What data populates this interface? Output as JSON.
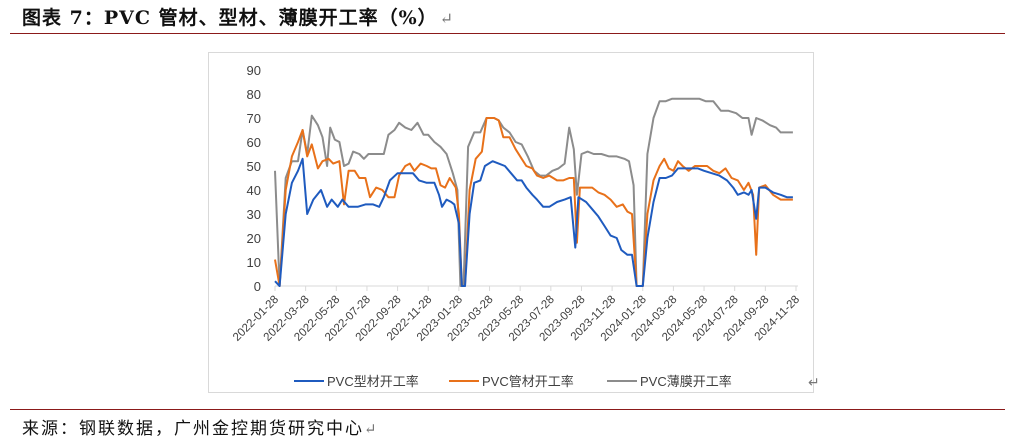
{
  "figure": {
    "title": "图表 7：PVC 管材、型材、薄膜开工率（%）",
    "return_mark": "↵"
  },
  "source": {
    "text": "来源：钢联数据，广州金控期货研究中心",
    "return_mark": "↵"
  },
  "legend_return_mark": "↵",
  "chart_data": {
    "type": "line",
    "title": "PVC 管材、型材、薄膜开工率（%）",
    "xlabel": "",
    "ylabel": "",
    "ylim": [
      0,
      90
    ],
    "yticks": [
      0,
      10,
      20,
      30,
      40,
      50,
      60,
      70,
      80,
      90
    ],
    "grid": false,
    "legend_position": "bottom",
    "x_tick_labels": [
      "2022-01-28",
      "2022-03-28",
      "2022-05-28",
      "2022-07-28",
      "2022-09-28",
      "2022-11-28",
      "2023-01-28",
      "2023-03-28",
      "2023-05-28",
      "2023-07-28",
      "2023-09-28",
      "2023-11-28",
      "2024-01-28",
      "2024-03-28",
      "2024-05-28",
      "2024-07-28",
      "2024-09-28",
      "2024-11-28"
    ],
    "x_unit": "months since 2022-01-28",
    "x_range": [
      0,
      34
    ],
    "series": [
      {
        "name": "PVC型材开工率",
        "color": "#1f5bbf",
        "points": [
          [
            0,
            2
          ],
          [
            0.3,
            0
          ],
          [
            0.7,
            30
          ],
          [
            1.1,
            43
          ],
          [
            1.5,
            48
          ],
          [
            1.8,
            53
          ],
          [
            2.1,
            30
          ],
          [
            2.5,
            36
          ],
          [
            3.0,
            40
          ],
          [
            3.4,
            33
          ],
          [
            3.7,
            36
          ],
          [
            4.1,
            33
          ],
          [
            4.4,
            36
          ],
          [
            4.8,
            33
          ],
          [
            5.4,
            33
          ],
          [
            5.9,
            34
          ],
          [
            6.4,
            34
          ],
          [
            6.8,
            33
          ],
          [
            7.1,
            37
          ],
          [
            7.5,
            44
          ],
          [
            8.0,
            47
          ],
          [
            8.6,
            47
          ],
          [
            9.0,
            47
          ],
          [
            9.4,
            44
          ],
          [
            9.9,
            43
          ],
          [
            10.4,
            43
          ],
          [
            10.7,
            38
          ],
          [
            10.9,
            33
          ],
          [
            11.2,
            36
          ],
          [
            11.5,
            35
          ],
          [
            11.7,
            34
          ],
          [
            12.0,
            26
          ],
          [
            12.2,
            0
          ],
          [
            12.4,
            0
          ],
          [
            12.7,
            30
          ],
          [
            13.0,
            43
          ],
          [
            13.4,
            44
          ],
          [
            13.7,
            50
          ],
          [
            14.2,
            52
          ],
          [
            14.6,
            51
          ],
          [
            15.0,
            50
          ],
          [
            15.4,
            47
          ],
          [
            15.8,
            44
          ],
          [
            16.1,
            44
          ],
          [
            16.4,
            41
          ],
          [
            16.8,
            38
          ],
          [
            17.1,
            36
          ],
          [
            17.5,
            33
          ],
          [
            17.9,
            33
          ],
          [
            18.4,
            35
          ],
          [
            18.9,
            36
          ],
          [
            19.3,
            37
          ],
          [
            19.6,
            16
          ],
          [
            19.8,
            37
          ],
          [
            20.3,
            35
          ],
          [
            20.7,
            32
          ],
          [
            21.1,
            29
          ],
          [
            21.5,
            25
          ],
          [
            21.9,
            21
          ],
          [
            22.3,
            20
          ],
          [
            22.6,
            15
          ],
          [
            23.0,
            13
          ],
          [
            23.3,
            13
          ],
          [
            23.6,
            0
          ],
          [
            24.0,
            0
          ],
          [
            24.3,
            20
          ],
          [
            24.7,
            35
          ],
          [
            25.1,
            45
          ],
          [
            25.5,
            45
          ],
          [
            25.9,
            46
          ],
          [
            26.3,
            49
          ],
          [
            27.0,
            49
          ],
          [
            27.6,
            49
          ],
          [
            28.0,
            48
          ],
          [
            28.5,
            47
          ],
          [
            29.0,
            46
          ],
          [
            29.5,
            44
          ],
          [
            29.9,
            41
          ],
          [
            30.2,
            38
          ],
          [
            30.6,
            39
          ],
          [
            30.9,
            38
          ],
          [
            31.1,
            40
          ],
          [
            31.4,
            28
          ],
          [
            31.6,
            41
          ],
          [
            32.0,
            41
          ],
          [
            32.5,
            39
          ],
          [
            33.0,
            38
          ],
          [
            33.4,
            37
          ],
          [
            33.8,
            37
          ]
        ]
      },
      {
        "name": "PVC管材开工率",
        "color": "#e8711a",
        "points": [
          [
            0,
            11
          ],
          [
            0.3,
            0
          ],
          [
            0.7,
            40
          ],
          [
            1.1,
            54
          ],
          [
            1.5,
            60
          ],
          [
            1.8,
            65
          ],
          [
            2.1,
            54
          ],
          [
            2.4,
            59
          ],
          [
            2.8,
            49
          ],
          [
            3.1,
            52
          ],
          [
            3.5,
            53
          ],
          [
            3.8,
            51
          ],
          [
            4.2,
            52
          ],
          [
            4.5,
            34
          ],
          [
            4.8,
            48
          ],
          [
            5.2,
            48
          ],
          [
            5.5,
            45
          ],
          [
            5.9,
            45
          ],
          [
            6.2,
            37
          ],
          [
            6.6,
            41
          ],
          [
            7.0,
            40
          ],
          [
            7.4,
            37
          ],
          [
            7.8,
            37
          ],
          [
            8.1,
            46
          ],
          [
            8.5,
            50
          ],
          [
            8.8,
            51
          ],
          [
            9.1,
            48
          ],
          [
            9.5,
            51
          ],
          [
            9.9,
            50
          ],
          [
            10.2,
            49
          ],
          [
            10.5,
            49
          ],
          [
            10.8,
            42
          ],
          [
            11.1,
            41
          ],
          [
            11.4,
            45
          ],
          [
            11.8,
            41
          ],
          [
            12.0,
            30
          ],
          [
            12.2,
            0
          ],
          [
            12.4,
            0
          ],
          [
            12.7,
            40
          ],
          [
            13.1,
            53
          ],
          [
            13.5,
            56
          ],
          [
            13.8,
            70
          ],
          [
            14.3,
            70
          ],
          [
            14.6,
            69
          ],
          [
            14.9,
            62
          ],
          [
            15.3,
            62
          ],
          [
            15.7,
            57
          ],
          [
            16.1,
            53
          ],
          [
            16.4,
            50
          ],
          [
            16.8,
            49
          ],
          [
            17.1,
            46
          ],
          [
            17.5,
            45
          ],
          [
            17.9,
            46
          ],
          [
            18.4,
            44
          ],
          [
            18.8,
            44
          ],
          [
            19.2,
            45
          ],
          [
            19.5,
            45
          ],
          [
            19.7,
            18
          ],
          [
            19.9,
            41
          ],
          [
            20.3,
            41
          ],
          [
            20.7,
            41
          ],
          [
            21.1,
            39
          ],
          [
            21.5,
            38
          ],
          [
            21.9,
            36
          ],
          [
            22.3,
            33
          ],
          [
            22.7,
            34
          ],
          [
            23.0,
            31
          ],
          [
            23.3,
            30
          ],
          [
            23.6,
            0
          ],
          [
            24.0,
            0
          ],
          [
            24.3,
            30
          ],
          [
            24.7,
            44
          ],
          [
            25.1,
            50
          ],
          [
            25.4,
            53
          ],
          [
            25.7,
            49
          ],
          [
            26.0,
            48
          ],
          [
            26.3,
            52
          ],
          [
            26.6,
            50
          ],
          [
            27.0,
            48
          ],
          [
            27.4,
            50
          ],
          [
            27.8,
            50
          ],
          [
            28.2,
            50
          ],
          [
            28.6,
            48
          ],
          [
            29.0,
            47
          ],
          [
            29.4,
            49
          ],
          [
            29.8,
            45
          ],
          [
            30.2,
            44
          ],
          [
            30.6,
            40
          ],
          [
            30.9,
            43
          ],
          [
            31.2,
            38
          ],
          [
            31.4,
            13
          ],
          [
            31.6,
            41
          ],
          [
            32.0,
            42
          ],
          [
            32.5,
            38
          ],
          [
            33.0,
            36
          ],
          [
            33.4,
            36
          ],
          [
            33.8,
            36
          ]
        ]
      },
      {
        "name": "PVC薄膜开工率",
        "color": "#8c8c8c",
        "points": [
          [
            0,
            48
          ],
          [
            0.3,
            0
          ],
          [
            0.7,
            45
          ],
          [
            1.1,
            52
          ],
          [
            1.5,
            52
          ],
          [
            1.8,
            65
          ],
          [
            2.1,
            55
          ],
          [
            2.4,
            71
          ],
          [
            2.8,
            67
          ],
          [
            3.1,
            62
          ],
          [
            3.4,
            50
          ],
          [
            3.6,
            66
          ],
          [
            3.9,
            61
          ],
          [
            4.2,
            60
          ],
          [
            4.5,
            50
          ],
          [
            4.8,
            51
          ],
          [
            5.1,
            56
          ],
          [
            5.5,
            55
          ],
          [
            5.8,
            53
          ],
          [
            6.1,
            55
          ],
          [
            6.6,
            55
          ],
          [
            7.1,
            55
          ],
          [
            7.4,
            63
          ],
          [
            7.8,
            65
          ],
          [
            8.1,
            68
          ],
          [
            8.5,
            66
          ],
          [
            8.9,
            65
          ],
          [
            9.3,
            68
          ],
          [
            9.7,
            63
          ],
          [
            10.0,
            63
          ],
          [
            10.4,
            60
          ],
          [
            10.8,
            58
          ],
          [
            11.2,
            55
          ],
          [
            11.6,
            47
          ],
          [
            11.9,
            40
          ],
          [
            12.1,
            0
          ],
          [
            12.3,
            0
          ],
          [
            12.6,
            58
          ],
          [
            13.0,
            64
          ],
          [
            13.4,
            64
          ],
          [
            13.8,
            70
          ],
          [
            14.3,
            70
          ],
          [
            14.6,
            69
          ],
          [
            14.9,
            66
          ],
          [
            15.3,
            64
          ],
          [
            15.7,
            60
          ],
          [
            16.1,
            59
          ],
          [
            16.5,
            54
          ],
          [
            16.9,
            48
          ],
          [
            17.3,
            46
          ],
          [
            17.7,
            46
          ],
          [
            18.1,
            48
          ],
          [
            18.5,
            49
          ],
          [
            18.9,
            51
          ],
          [
            19.2,
            66
          ],
          [
            19.5,
            57
          ],
          [
            19.7,
            38
          ],
          [
            20.0,
            55
          ],
          [
            20.4,
            56
          ],
          [
            20.8,
            55
          ],
          [
            21.3,
            55
          ],
          [
            21.8,
            54
          ],
          [
            22.3,
            54
          ],
          [
            22.8,
            53
          ],
          [
            23.1,
            52
          ],
          [
            23.4,
            42
          ],
          [
            23.6,
            0
          ],
          [
            24.0,
            0
          ],
          [
            24.3,
            55
          ],
          [
            24.7,
            70
          ],
          [
            25.1,
            77
          ],
          [
            25.5,
            77
          ],
          [
            25.9,
            78
          ],
          [
            26.5,
            78
          ],
          [
            27.1,
            78
          ],
          [
            27.7,
            78
          ],
          [
            28.1,
            77
          ],
          [
            28.6,
            77
          ],
          [
            29.1,
            73
          ],
          [
            29.6,
            73
          ],
          [
            30.1,
            72
          ],
          [
            30.5,
            70
          ],
          [
            30.9,
            70
          ],
          [
            31.1,
            63
          ],
          [
            31.4,
            70
          ],
          [
            31.8,
            69
          ],
          [
            32.3,
            67
          ],
          [
            32.7,
            66
          ],
          [
            33.0,
            64
          ],
          [
            33.4,
            64
          ],
          [
            33.8,
            64
          ]
        ]
      }
    ]
  }
}
